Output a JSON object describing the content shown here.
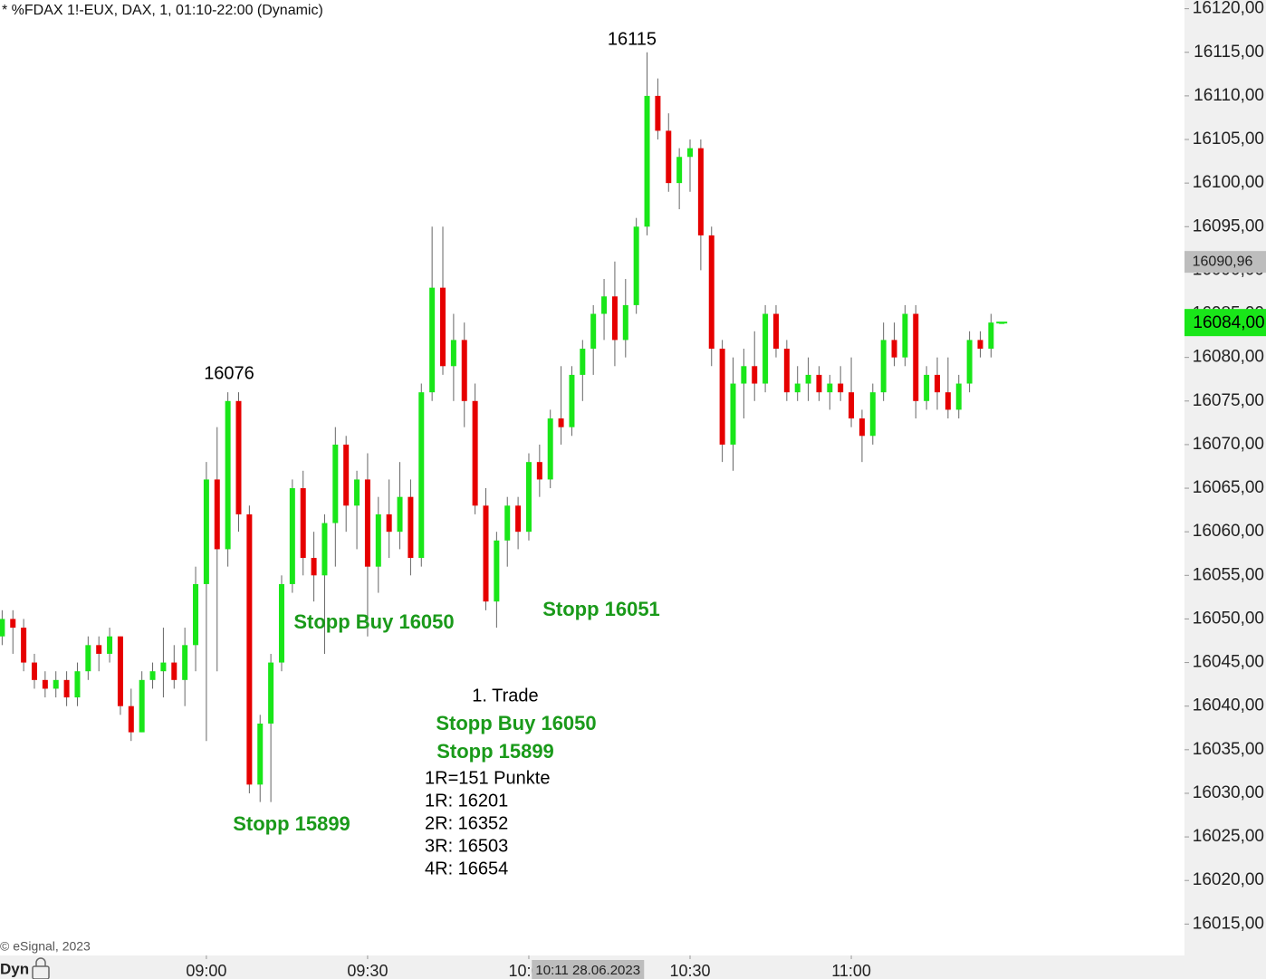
{
  "chart_data": {
    "type": "candlestick",
    "title": "* %FDAX 1!-EUX, DAX, 1, 01:10-22:00 (Dynamic)",
    "footer": "© eSignal, 2023",
    "toolbar_label": "Dyn",
    "up_color": "#19e619",
    "down_color": "#e60000",
    "wick_color": "#666666",
    "annotation_color": "#1a9a1a",
    "x": [
      502,
      504,
      506,
      508,
      510,
      512,
      514,
      516,
      518,
      520,
      522,
      524,
      526,
      528,
      530,
      532,
      534,
      536,
      538,
      540,
      542,
      544,
      546,
      548,
      550,
      552,
      554,
      556,
      558,
      560,
      562,
      564,
      566,
      568,
      570,
      572,
      574,
      576,
      578,
      580,
      582,
      584,
      586,
      588,
      590,
      592,
      594,
      596,
      598,
      600,
      602,
      604,
      606,
      608,
      610,
      612,
      614,
      616,
      618,
      620,
      622,
      624,
      626,
      628,
      630,
      632,
      634,
      636,
      638,
      640,
      642,
      644,
      646,
      648,
      650,
      652,
      654,
      656,
      658,
      660,
      662,
      664,
      666,
      668,
      670,
      672,
      674,
      676,
      678,
      680,
      682,
      684,
      686,
      688
    ],
    "open": [
      16048,
      16050,
      16049,
      16045,
      16043,
      16042,
      16043,
      16041,
      16044,
      16047,
      16046,
      16048,
      16040,
      16037,
      16043,
      16044,
      16045,
      16043,
      16047,
      16054,
      16066,
      16058,
      16075,
      16062,
      16031,
      16038,
      16045,
      16054,
      16065,
      16057,
      16055,
      16061,
      16070,
      16063,
      16066,
      16056,
      16062,
      16060,
      16064,
      16057,
      16076,
      16088,
      16079,
      16082,
      16075,
      16063,
      16052,
      16059,
      16063,
      16060,
      16068,
      16066,
      16073,
      16072,
      16078,
      16081,
      16085,
      16087,
      16082,
      16086,
      16095,
      16110,
      16106,
      16100,
      16103,
      16104,
      16094,
      16081,
      16070,
      16077,
      16079,
      16077,
      16085,
      16081,
      16076,
      16077,
      16078,
      16076,
      16077,
      16076,
      16073,
      16071,
      16076,
      16082,
      16080,
      16085,
      16075,
      16078,
      16076,
      16074,
      16077,
      16082,
      16081,
      16084
    ],
    "high": [
      16051,
      16051,
      16050,
      16046,
      16044,
      16044,
      16044,
      16045,
      16048,
      16048,
      16049,
      16048,
      16042,
      16044,
      16045,
      16049,
      16047,
      16049,
      16056,
      16068,
      16072,
      16076,
      16076,
      16063,
      16039,
      16046,
      16055,
      16066,
      16067,
      16060,
      16062,
      16072,
      16071,
      16067,
      16069,
      16064,
      16066,
      16068,
      16066,
      16077,
      16095,
      16095,
      16085,
      16084,
      16077,
      16065,
      16060,
      16064,
      16064,
      16069,
      16070,
      16074,
      16079,
      16079,
      16082,
      16086,
      16089,
      16091,
      16089,
      16096,
      16115,
      16112,
      16108,
      16104,
      16105,
      16105,
      16095,
      16082,
      16080,
      16081,
      16083,
      16086,
      16086,
      16082,
      16079,
      16080,
      16079,
      16078,
      16079,
      16080,
      16074,
      16077,
      16084,
      16084,
      16086,
      16086,
      16079,
      16080,
      16080,
      16078,
      16083,
      16083,
      16085,
      16084
    ],
    "low": [
      16047,
      16046,
      16044,
      16042,
      16041,
      16041,
      16040,
      16040,
      16043,
      16044,
      16045,
      16039,
      16036,
      16037,
      16042,
      16041,
      16042,
      16040,
      16044,
      16036,
      16044,
      16056,
      16060,
      16030,
      16029,
      16029,
      16044,
      16053,
      16055,
      16052,
      16046,
      16056,
      16060,
      16058,
      16048,
      16053,
      16057,
      16058,
      16055,
      16056,
      16075,
      16078,
      16075,
      16072,
      16062,
      16051,
      16049,
      16056,
      16058,
      16059,
      16064,
      16065,
      16070,
      16071,
      16075,
      16078,
      16082,
      16079,
      16080,
      16085,
      16094,
      16105,
      16099,
      16097,
      16099,
      16090,
      16079,
      16068,
      16067,
      16073,
      16075,
      16076,
      16080,
      16075,
      16075,
      16075,
      16075,
      16074,
      16075,
      16072,
      16068,
      16070,
      16075,
      16079,
      16079,
      16073,
      16074,
      16074,
      16073,
      16073,
      16076,
      16080,
      16080,
      16084
    ],
    "close": [
      16050,
      16049,
      16045,
      16043,
      16042,
      16043,
      16041,
      16044,
      16047,
      16046,
      16048,
      16040,
      16037,
      16043,
      16044,
      16045,
      16043,
      16047,
      16054,
      16066,
      16058,
      16075,
      16062,
      16031,
      16038,
      16045,
      16054,
      16065,
      16057,
      16055,
      16061,
      16070,
      16063,
      16066,
      16056,
      16062,
      16060,
      16064,
      16057,
      16076,
      16088,
      16079,
      16082,
      16075,
      16063,
      16052,
      16059,
      16063,
      16060,
      16068,
      16066,
      16073,
      16072,
      16078,
      16081,
      16085,
      16087,
      16082,
      16086,
      16095,
      16110,
      16106,
      16100,
      16103,
      16104,
      16094,
      16081,
      16070,
      16077,
      16079,
      16077,
      16085,
      16081,
      16076,
      16077,
      16078,
      16076,
      16077,
      16076,
      16073,
      16071,
      16076,
      16082,
      16080,
      16085,
      16075,
      16078,
      16076,
      16074,
      16077,
      16082,
      16081,
      16084,
      16084
    ],
    "xlim": [
      501.6,
      722.0
    ],
    "ylim": [
      16011.4,
      16121.0
    ],
    "xticks": [
      {
        "value": 540,
        "label": "09:00"
      },
      {
        "value": 570,
        "label": "09:30"
      },
      {
        "value": 600,
        "label": "10:00"
      },
      {
        "value": 630,
        "label": "10:30"
      },
      {
        "value": 660,
        "label": "11:00"
      }
    ],
    "yticks": [
      {
        "value": 16120,
        "label": "16120,00"
      },
      {
        "value": 16115,
        "label": "16115,00"
      },
      {
        "value": 16110,
        "label": "16110,00"
      },
      {
        "value": 16105,
        "label": "16105,00"
      },
      {
        "value": 16100,
        "label": "16100,00"
      },
      {
        "value": 16095,
        "label": "16095,00"
      },
      {
        "value": 16090,
        "label": "16090,00"
      },
      {
        "value": 16085,
        "label": "16085,00"
      },
      {
        "value": 16080,
        "label": "16080,00"
      },
      {
        "value": 16075,
        "label": "16075,00"
      },
      {
        "value": 16070,
        "label": "16070,00"
      },
      {
        "value": 16065,
        "label": "16065,00"
      },
      {
        "value": 16060,
        "label": "16060,00"
      },
      {
        "value": 16055,
        "label": "16055,00"
      },
      {
        "value": 16050,
        "label": "16050,00"
      },
      {
        "value": 16045,
        "label": "16045,00"
      },
      {
        "value": 16040,
        "label": "16040,00"
      },
      {
        "value": 16035,
        "label": "16035,00"
      },
      {
        "value": 16030,
        "label": "16030,00"
      },
      {
        "value": 16025,
        "label": "16025,00"
      },
      {
        "value": 16020,
        "label": "16020,00"
      },
      {
        "value": 16015,
        "label": "16015,00"
      }
    ],
    "crosshair_price": {
      "value": 16090.96,
      "label": "16090,96"
    },
    "crosshair_time": {
      "value": 611,
      "label": "10:11 28.06.2023"
    },
    "last_price": {
      "value": 16084,
      "label": "16084,00"
    },
    "annotations": [
      {
        "text": "16076",
        "highlight": false
      },
      {
        "text": "16115",
        "highlight": false
      },
      {
        "text": "Stopp Buy 16050",
        "highlight": true
      },
      {
        "text": "Stopp 16051",
        "highlight": true
      },
      {
        "text": "Stopp 15899",
        "highlight": true
      },
      {
        "text": "1. Trade",
        "highlight": false
      },
      {
        "text": "Stopp Buy 16050",
        "highlight": true
      },
      {
        "text": "Stopp 15899",
        "highlight": true
      },
      {
        "text": "1R=151 Punkte",
        "highlight": false
      },
      {
        "text": "1R: 16201",
        "highlight": false
      },
      {
        "text": "2R: 16352",
        "highlight": false
      },
      {
        "text": "3R: 16503",
        "highlight": false
      },
      {
        "text": "4R: 16654",
        "highlight": false
      }
    ]
  }
}
